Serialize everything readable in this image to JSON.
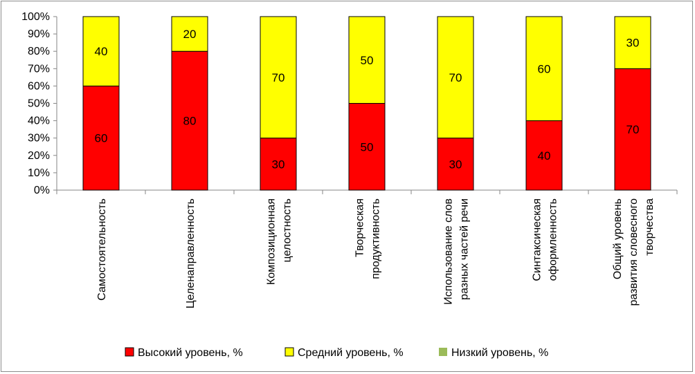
{
  "chart_data": {
    "type": "bar",
    "stacked": true,
    "ylim": [
      0,
      100
    ],
    "y_ticks": [
      "0%",
      "10%",
      "20%",
      "30%",
      "40%",
      "50%",
      "60%",
      "70%",
      "80%",
      "90%",
      "100%"
    ],
    "categories": [
      [
        "Самостоятельность"
      ],
      [
        "Целенаправленность"
      ],
      [
        "Композиционная",
        "целостность"
      ],
      [
        "Творческая",
        "продуктивность"
      ],
      [
        "Использование слов",
        "разных частей речи"
      ],
      [
        "Синтаксическая",
        "оформленность"
      ],
      [
        "Общий уровень",
        "развития словесного",
        "творчества"
      ]
    ],
    "series": [
      {
        "name": "Высокий уровень, %",
        "color": "#ff0000",
        "values": [
          60,
          80,
          30,
          50,
          30,
          40,
          70
        ]
      },
      {
        "name": "Средний уровень, %",
        "color": "#ffff00",
        "values": [
          40,
          20,
          70,
          50,
          70,
          60,
          30
        ]
      },
      {
        "name": "Низкий уровень, %",
        "color": "#9bbb59",
        "values": [
          0,
          0,
          0,
          0,
          0,
          0,
          0
        ]
      }
    ],
    "legend_position": "bottom",
    "grid": false
  }
}
